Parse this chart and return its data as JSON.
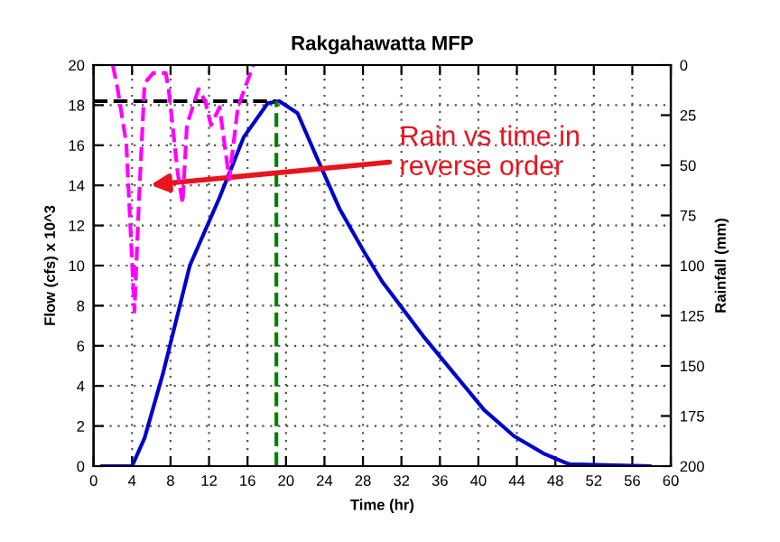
{
  "chart_data": {
    "type": "line",
    "title": "Rakgahawatta MFP",
    "xlabel": "Time (hr)",
    "ylabel": "Flow (cfs) x 10^3",
    "y2label": "Rainfall (mm)",
    "xlim": [
      0,
      60
    ],
    "xticks": [
      0,
      4,
      8,
      12,
      16,
      20,
      24,
      28,
      32,
      36,
      40,
      44,
      48,
      52,
      56,
      60
    ],
    "ylim": [
      0,
      20
    ],
    "yticks": [
      0,
      2,
      4,
      6,
      8,
      10,
      12,
      14,
      16,
      18,
      20
    ],
    "y2lim": [
      200,
      0
    ],
    "y2ticks": [
      0,
      25,
      50,
      75,
      100,
      125,
      150,
      175,
      200
    ],
    "grid": true,
    "marker": "none",
    "series": [
      {
        "color": "#0000cc",
        "line_style": "solid",
        "x": [
          0.9,
          4,
          5.3,
          7.2,
          10,
          13.1,
          15.6,
          18.1,
          19.3,
          21.2,
          23.1,
          25.6,
          28.1,
          30,
          31.9,
          34.4,
          37.5,
          40.6,
          43.7,
          46.9,
          49.4,
          57.8
        ],
        "values": [
          0,
          0,
          1.4,
          4.6,
          10,
          13.4,
          16.4,
          18.1,
          18.2,
          17.6,
          15.5,
          12.8,
          10.7,
          9.2,
          8.0,
          6.4,
          4.6,
          2.8,
          1.5,
          0.6,
          0.1,
          0
        ]
      },
      {
        "color": "#ff00ff",
        "line_style": "dashed",
        "axis": "y2",
        "x": [
          2.0,
          2.5,
          3.4,
          4.25,
          4.7,
          5.3,
          6.2,
          7.5,
          7.8,
          8.75,
          9.25,
          9.7,
          10.9,
          11.6,
          12.2,
          13.1,
          14.1,
          15,
          16.6
        ],
        "values": [
          0,
          12,
          39,
          123,
          69,
          9,
          4,
          4,
          12,
          54,
          69,
          30,
          12,
          18,
          30,
          21,
          57,
          21,
          0
        ]
      },
      {
        "color": "#000000",
        "line_style": "dashed",
        "x": [
          0,
          19
        ],
        "values": [
          18.2,
          18.2
        ]
      },
      {
        "color": "#008000",
        "line_style": "dashed",
        "x": [
          19,
          19
        ],
        "values": [
          0,
          18.2
        ]
      }
    ],
    "annotations": [
      "Rain vs time in\nreverse order"
    ]
  }
}
